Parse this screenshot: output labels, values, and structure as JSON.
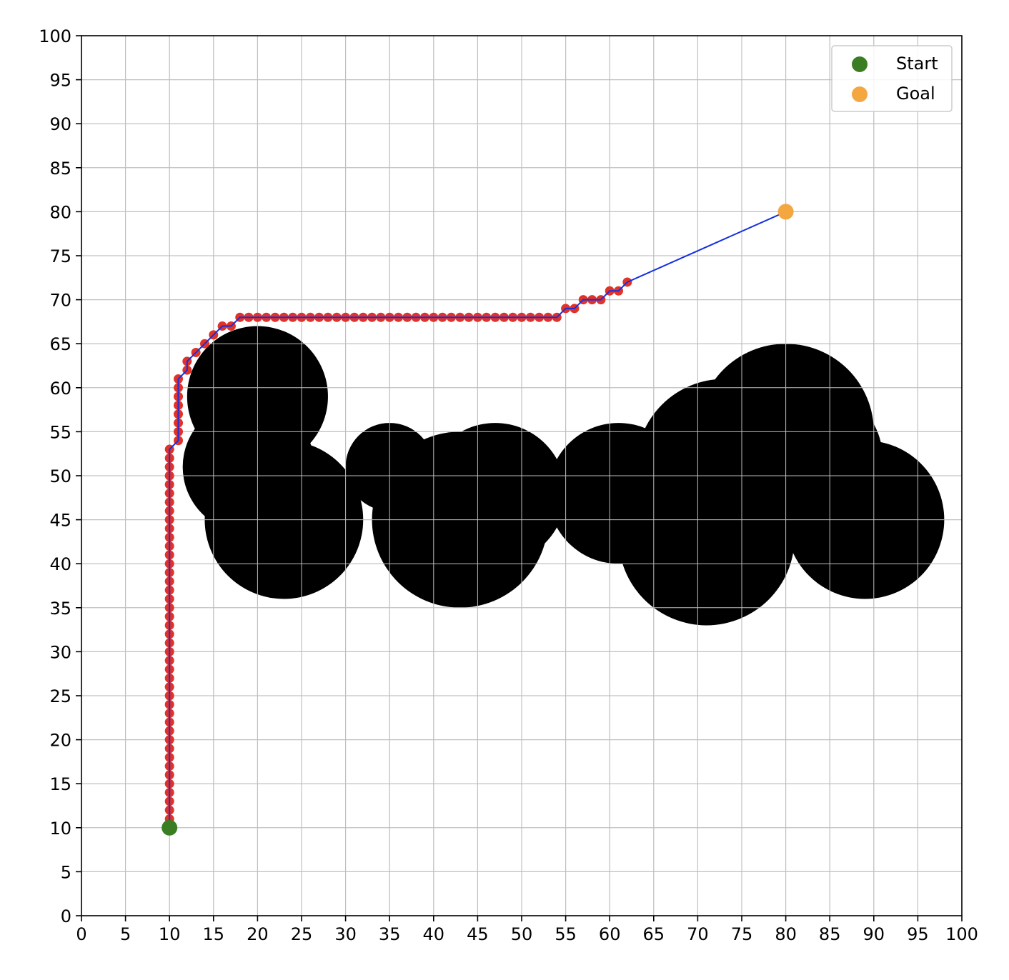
{
  "chart_data": {
    "type": "scatter",
    "title": "",
    "xlabel": "",
    "ylabel": "",
    "xlim": [
      0,
      100
    ],
    "ylim": [
      0,
      100
    ],
    "xticks": [
      0,
      5,
      10,
      15,
      20,
      25,
      30,
      35,
      40,
      45,
      50,
      55,
      60,
      65,
      70,
      75,
      80,
      85,
      90,
      95,
      100
    ],
    "yticks": [
      0,
      5,
      10,
      15,
      20,
      25,
      30,
      35,
      40,
      45,
      50,
      55,
      60,
      65,
      70,
      75,
      80,
      85,
      90,
      95,
      100
    ],
    "grid": true,
    "legend_position": "top-right",
    "obstacles": [
      {
        "cx": 20,
        "cy": 59,
        "r": 8
      },
      {
        "cx": 19,
        "cy": 51,
        "r": 7.5
      },
      {
        "cx": 23,
        "cy": 45,
        "r": 9
      },
      {
        "cx": 25,
        "cy": 43,
        "r": 6
      },
      {
        "cx": 35,
        "cy": 51,
        "r": 5
      },
      {
        "cx": 43,
        "cy": 45,
        "r": 10
      },
      {
        "cx": 47,
        "cy": 48,
        "r": 8
      },
      {
        "cx": 61,
        "cy": 48,
        "r": 8
      },
      {
        "cx": 71,
        "cy": 43,
        "r": 10
      },
      {
        "cx": 73,
        "cy": 51,
        "r": 10
      },
      {
        "cx": 80,
        "cy": 55,
        "r": 10
      },
      {
        "cx": 83,
        "cy": 52,
        "r": 8
      },
      {
        "cx": 89,
        "cy": 45,
        "r": 9
      }
    ],
    "series": [
      {
        "name": "Start",
        "color": "#3a7d22",
        "points": [
          [
            10,
            10
          ]
        ]
      },
      {
        "name": "Goal",
        "color": "#f4a640",
        "points": [
          [
            80,
            80
          ]
        ]
      },
      {
        "color": "#e03228",
        "points": [
          [
            10,
            11
          ],
          [
            10,
            12
          ],
          [
            10,
            13
          ],
          [
            10,
            14
          ],
          [
            10,
            15
          ],
          [
            10,
            16
          ],
          [
            10,
            17
          ],
          [
            10,
            18
          ],
          [
            10,
            19
          ],
          [
            10,
            20
          ],
          [
            10,
            21
          ],
          [
            10,
            22
          ],
          [
            10,
            23
          ],
          [
            10,
            24
          ],
          [
            10,
            25
          ],
          [
            10,
            26
          ],
          [
            10,
            27
          ],
          [
            10,
            28
          ],
          [
            10,
            29
          ],
          [
            10,
            30
          ],
          [
            10,
            31
          ],
          [
            10,
            32
          ],
          [
            10,
            33
          ],
          [
            10,
            34
          ],
          [
            10,
            35
          ],
          [
            10,
            36
          ],
          [
            10,
            37
          ],
          [
            10,
            38
          ],
          [
            10,
            39
          ],
          [
            10,
            40
          ],
          [
            10,
            41
          ],
          [
            10,
            42
          ],
          [
            10,
            43
          ],
          [
            10,
            44
          ],
          [
            10,
            45
          ],
          [
            10,
            46
          ],
          [
            10,
            47
          ],
          [
            10,
            48
          ],
          [
            10,
            49
          ],
          [
            10,
            50
          ],
          [
            10,
            51
          ],
          [
            10,
            52
          ],
          [
            10,
            53
          ],
          [
            11,
            54
          ],
          [
            11,
            55
          ],
          [
            11,
            56
          ],
          [
            11,
            57
          ],
          [
            11,
            58
          ],
          [
            11,
            59
          ],
          [
            11,
            60
          ],
          [
            11,
            61
          ],
          [
            12,
            62
          ],
          [
            12,
            63
          ],
          [
            13,
            64
          ],
          [
            14,
            65
          ],
          [
            15,
            66
          ],
          [
            16,
            67
          ],
          [
            17,
            67
          ],
          [
            18,
            68
          ],
          [
            19,
            68
          ],
          [
            20,
            68
          ],
          [
            21,
            68
          ],
          [
            22,
            68
          ],
          [
            23,
            68
          ],
          [
            24,
            68
          ],
          [
            25,
            68
          ],
          [
            26,
            68
          ],
          [
            27,
            68
          ],
          [
            28,
            68
          ],
          [
            29,
            68
          ],
          [
            30,
            68
          ],
          [
            31,
            68
          ],
          [
            32,
            68
          ],
          [
            33,
            68
          ],
          [
            34,
            68
          ],
          [
            35,
            68
          ],
          [
            36,
            68
          ],
          [
            37,
            68
          ],
          [
            38,
            68
          ],
          [
            39,
            68
          ],
          [
            40,
            68
          ],
          [
            41,
            68
          ],
          [
            42,
            68
          ],
          [
            43,
            68
          ],
          [
            44,
            68
          ],
          [
            45,
            68
          ],
          [
            46,
            68
          ],
          [
            47,
            68
          ],
          [
            48,
            68
          ],
          [
            49,
            68
          ],
          [
            50,
            68
          ],
          [
            51,
            68
          ],
          [
            52,
            68
          ],
          [
            53,
            68
          ],
          [
            54,
            68
          ],
          [
            55,
            69
          ],
          [
            56,
            69
          ],
          [
            57,
            70
          ],
          [
            58,
            70
          ],
          [
            59,
            70
          ],
          [
            60,
            71
          ],
          [
            61,
            71
          ],
          [
            62,
            72
          ]
        ]
      }
    ],
    "path": {
      "color": "#1530e0",
      "points": [
        [
          10,
          10
        ],
        [
          10,
          53
        ],
        [
          11,
          54
        ],
        [
          11,
          61
        ],
        [
          12,
          62
        ],
        [
          12,
          63
        ],
        [
          13,
          64
        ],
        [
          14,
          65
        ],
        [
          15,
          66
        ],
        [
          16,
          67
        ],
        [
          17,
          67
        ],
        [
          18,
          68
        ],
        [
          54,
          68
        ],
        [
          55,
          69
        ],
        [
          56,
          69
        ],
        [
          57,
          70
        ],
        [
          59,
          70
        ],
        [
          60,
          71
        ],
        [
          61,
          71
        ],
        [
          62,
          72
        ],
        [
          80,
          80
        ]
      ]
    }
  }
}
